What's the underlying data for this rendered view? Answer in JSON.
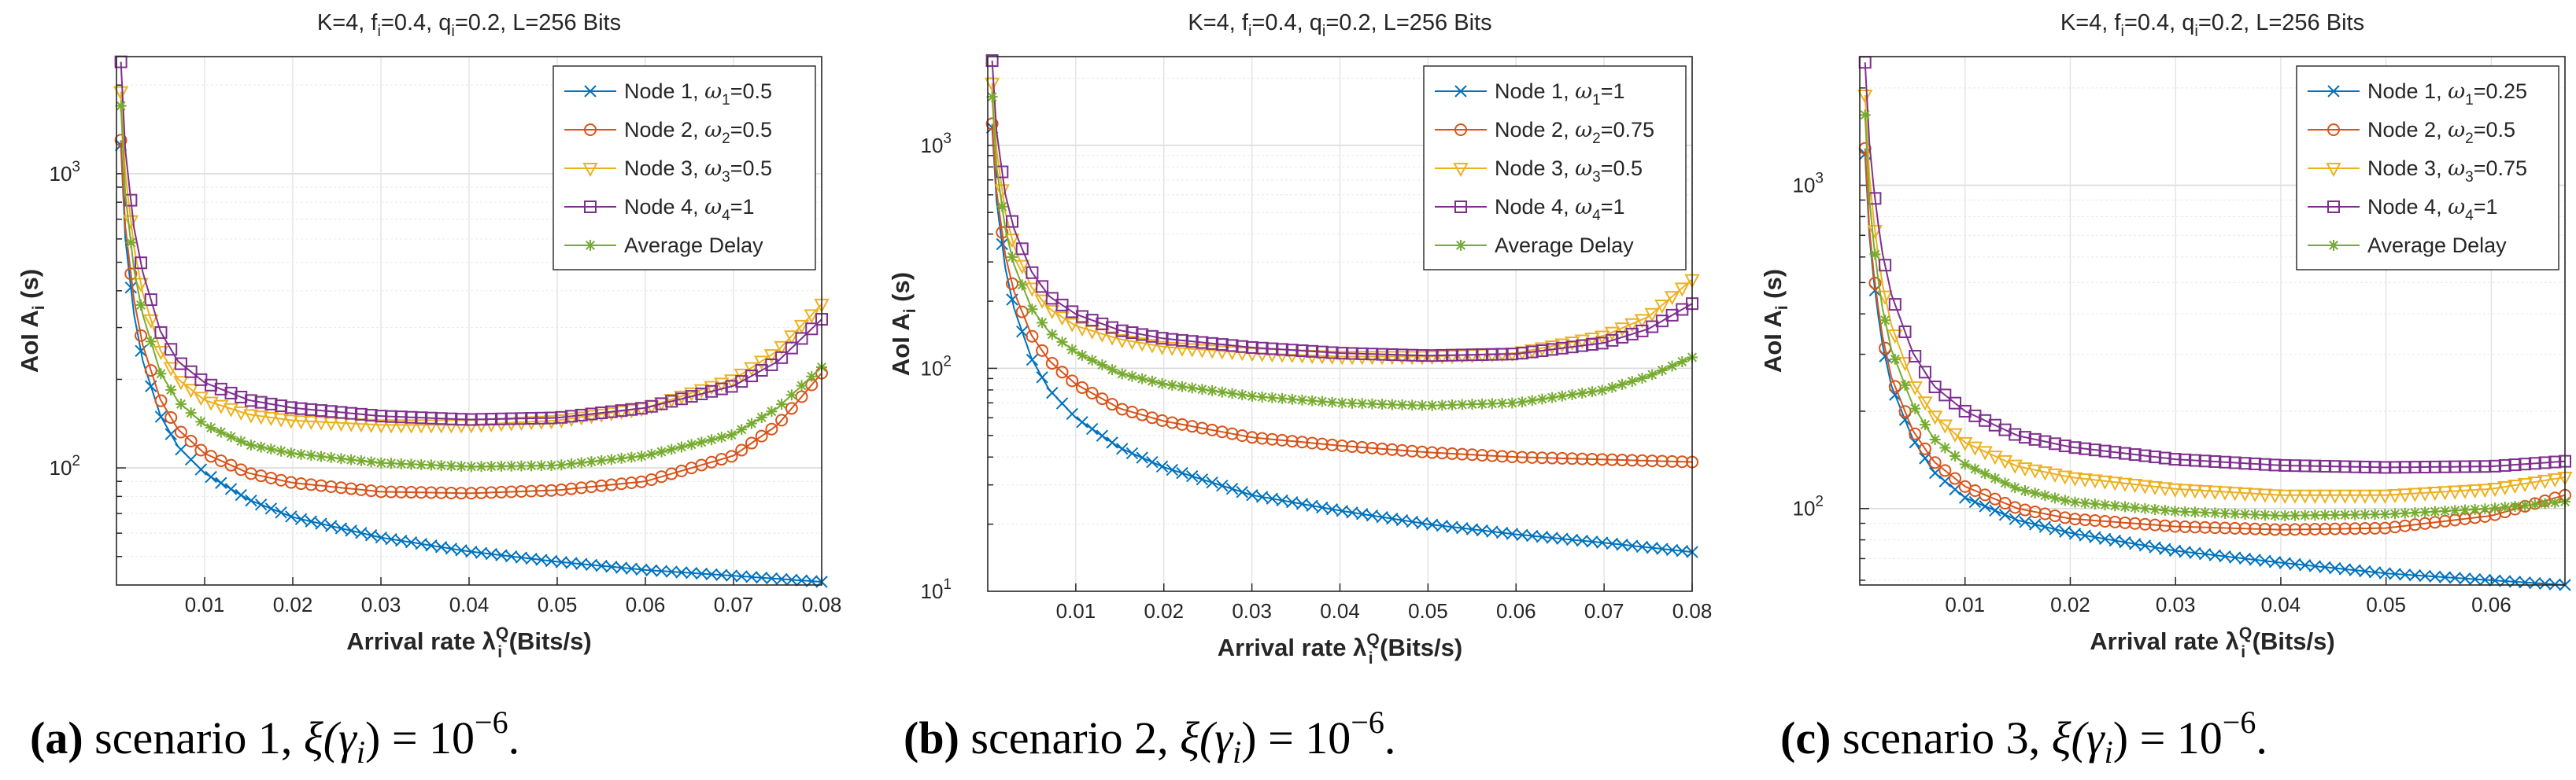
{
  "chart_data": [
    {
      "type": "line",
      "panel": "a",
      "title": "K=4, f_i=0.4, q_i=0.2, L=256 Bits",
      "title_parts": {
        "pre": "K=4, f",
        "sub1": "i",
        "mid": "=0.4, q",
        "sub2": "i",
        "post": "=0.2, L=256 Bits"
      },
      "xlabel": "Arrival rate λ_i^Q (Bits/s)",
      "xlabel_parts": {
        "pre": "Arrival rate λ",
        "sup": "Q",
        "sub": "i",
        "post": " (Bits/s)"
      },
      "ylabel": "AoI A_i (s)",
      "ylabel_parts": {
        "pre": "AoI A",
        "sub": "i",
        "post": " (s)"
      },
      "yscale": "log",
      "xlim": [
        0,
        0.08
      ],
      "ylim": [
        40,
        2500
      ],
      "xticks": [
        0.01,
        0.02,
        0.03,
        0.04,
        0.05,
        0.06,
        0.07,
        0.08
      ],
      "xtick_labels": [
        "0.01",
        "0.02",
        "0.03",
        "0.04",
        "0.05",
        "0.06",
        "0.07",
        "0.08"
      ],
      "yticks_major": [
        100,
        1000
      ],
      "ytick_labels": [
        {
          "base": "10",
          "exp": "2"
        },
        {
          "base": "10",
          "exp": "3"
        }
      ],
      "grid": true,
      "legend_position": "top-right",
      "series": [
        {
          "name": "Node 1, ω1=0.5",
          "legend": {
            "pre": "Node 1, ",
            "omega": "ω",
            "sub": "1",
            "post": "=0.5"
          },
          "color": "#0072BD",
          "marker": "x",
          "x": [
            0.0005,
            0.001,
            0.002,
            0.003,
            0.005,
            0.007,
            0.01,
            0.015,
            0.02,
            0.03,
            0.04,
            0.05,
            0.06,
            0.07,
            0.08
          ],
          "y": [
            1250,
            600,
            330,
            230,
            150,
            118,
            96,
            78,
            68,
            58,
            52,
            48,
            45,
            43,
            41
          ]
        },
        {
          "name": "Node 2, ω2=0.5",
          "legend": {
            "pre": "Node 2, ",
            "omega": "ω",
            "sub": "2",
            "post": "=0.5"
          },
          "color": "#D95319",
          "marker": "o",
          "x": [
            0.0005,
            0.001,
            0.002,
            0.003,
            0.005,
            0.007,
            0.01,
            0.015,
            0.02,
            0.03,
            0.04,
            0.05,
            0.06,
            0.07,
            0.075,
            0.08
          ],
          "y": [
            1300,
            660,
            370,
            260,
            170,
            135,
            112,
            96,
            89,
            83,
            82,
            84,
            90,
            110,
            140,
            210
          ]
        },
        {
          "name": "Node 3, ω3=0.5",
          "legend": {
            "pre": "Node 3, ",
            "omega": "ω",
            "sub": "3",
            "post": "=0.5"
          },
          "color": "#EDB120",
          "marker": "v",
          "x": [
            0.0005,
            0.001,
            0.002,
            0.003,
            0.005,
            0.007,
            0.01,
            0.015,
            0.02,
            0.03,
            0.04,
            0.05,
            0.06,
            0.07,
            0.075,
            0.08
          ],
          "y": [
            1900,
            1000,
            560,
            390,
            250,
            200,
            170,
            152,
            145,
            140,
            140,
            145,
            160,
            200,
            250,
            360
          ]
        },
        {
          "name": "Node 4, ω4=1",
          "legend": {
            "pre": "Node 4, ",
            "omega": "ω",
            "sub": "4",
            "post": "=1"
          },
          "color": "#7E2F8E",
          "marker": "s",
          "x": [
            0.0005,
            0.001,
            0.002,
            0.003,
            0.005,
            0.007,
            0.01,
            0.015,
            0.02,
            0.03,
            0.04,
            0.05,
            0.06,
            0.07,
            0.075,
            0.08
          ],
          "y": [
            2400,
            1200,
            650,
            460,
            290,
            230,
            195,
            170,
            160,
            150,
            146,
            148,
            160,
            190,
            230,
            320
          ]
        },
        {
          "name": "Average Delay",
          "legend": {
            "pre": "Average Delay",
            "omega": "",
            "sub": "",
            "post": ""
          },
          "color": "#77AC30",
          "marker": "*",
          "x": [
            0.0005,
            0.001,
            0.002,
            0.003,
            0.005,
            0.007,
            0.01,
            0.015,
            0.02,
            0.03,
            0.04,
            0.05,
            0.06,
            0.07,
            0.075,
            0.08
          ],
          "y": [
            1700,
            850,
            470,
            330,
            210,
            168,
            140,
            120,
            112,
            104,
            101,
            102,
            110,
            130,
            160,
            220
          ]
        }
      ]
    },
    {
      "type": "line",
      "panel": "b",
      "title": "K=4, f_i=0.4, q_i=0.2, L=256 Bits",
      "title_parts": {
        "pre": "K=4, f",
        "sub1": "i",
        "mid": "=0.4, q",
        "sub2": "i",
        "post": "=0.2, L=256 Bits"
      },
      "xlabel": "Arrival rate λ_i^Q (Bits/s)",
      "xlabel_parts": {
        "pre": "Arrival rate λ",
        "sup": "Q",
        "sub": "i",
        "post": " (Bits/s)"
      },
      "ylabel": "AoI A_i (s)",
      "ylabel_parts": {
        "pre": "AoI A",
        "sub": "i",
        "post": " (s)"
      },
      "yscale": "log",
      "xlim": [
        0,
        0.08
      ],
      "ylim": [
        10,
        2500
      ],
      "xticks": [
        0.01,
        0.02,
        0.03,
        0.04,
        0.05,
        0.06,
        0.07,
        0.08
      ],
      "xtick_labels": [
        "0.01",
        "0.02",
        "0.03",
        "0.04",
        "0.05",
        "0.06",
        "0.07",
        "0.08"
      ],
      "yticks_major": [
        10,
        100,
        1000
      ],
      "ytick_labels": [
        {
          "base": "10",
          "exp": "1"
        },
        {
          "base": "10",
          "exp": "2"
        },
        {
          "base": "10",
          "exp": "3"
        }
      ],
      "grid": true,
      "legend_position": "top-right",
      "series": [
        {
          "name": "Node 1, ω1=1",
          "legend": {
            "pre": "Node 1, ",
            "omega": "ω",
            "sub": "1",
            "post": "=1"
          },
          "color": "#0072BD",
          "marker": "x",
          "x": [
            0.0005,
            0.001,
            0.002,
            0.003,
            0.005,
            0.007,
            0.01,
            0.015,
            0.02,
            0.03,
            0.04,
            0.05,
            0.06,
            0.07,
            0.08
          ],
          "y": [
            1200,
            560,
            280,
            185,
            110,
            80,
            60,
            44,
            36,
            27,
            23,
            20,
            18,
            16.5,
            15
          ]
        },
        {
          "name": "Node 2, ω2=0.75",
          "legend": {
            "pre": "Node 2, ",
            "omega": "ω",
            "sub": "2",
            "post": "=0.75"
          },
          "color": "#D95319",
          "marker": "o",
          "x": [
            0.0005,
            0.001,
            0.002,
            0.003,
            0.005,
            0.007,
            0.01,
            0.015,
            0.02,
            0.03,
            0.04,
            0.05,
            0.06,
            0.07,
            0.08
          ],
          "y": [
            1250,
            620,
            320,
            220,
            140,
            108,
            85,
            66,
            58,
            49,
            45,
            42,
            40,
            39,
            38
          ]
        },
        {
          "name": "Node 3, ω3=0.5",
          "legend": {
            "pre": "Node 3, ",
            "omega": "ω",
            "sub": "3",
            "post": "=0.5"
          },
          "color": "#EDB120",
          "marker": "v",
          "x": [
            0.0005,
            0.001,
            0.002,
            0.003,
            0.005,
            0.007,
            0.01,
            0.015,
            0.02,
            0.03,
            0.04,
            0.05,
            0.06,
            0.07,
            0.075,
            0.08
          ],
          "y": [
            1900,
            950,
            500,
            350,
            230,
            185,
            155,
            135,
            125,
            117,
            113,
            113,
            117,
            140,
            170,
            250
          ]
        },
        {
          "name": "Node 4, ω4=1",
          "legend": {
            "pre": "Node 4, ",
            "omega": "ω",
            "sub": "4",
            "post": "=1"
          },
          "color": "#7E2F8E",
          "marker": "s",
          "x": [
            0.0005,
            0.001,
            0.002,
            0.003,
            0.005,
            0.007,
            0.01,
            0.015,
            0.02,
            0.03,
            0.04,
            0.05,
            0.06,
            0.07,
            0.075,
            0.08
          ],
          "y": [
            2400,
            1150,
            600,
            420,
            270,
            210,
            175,
            148,
            136,
            124,
            117,
            114,
            116,
            130,
            150,
            195
          ]
        },
        {
          "name": "Average Delay",
          "legend": {
            "pre": "Average Delay",
            "omega": "",
            "sub": "",
            "post": ""
          },
          "color": "#77AC30",
          "marker": "*",
          "x": [
            0.0005,
            0.001,
            0.002,
            0.003,
            0.005,
            0.007,
            0.01,
            0.015,
            0.02,
            0.03,
            0.04,
            0.05,
            0.06,
            0.07,
            0.075,
            0.08
          ],
          "y": [
            1650,
            800,
            420,
            290,
            185,
            145,
            118,
            95,
            85,
            75,
            70,
            68,
            70,
            80,
            92,
            112
          ]
        }
      ]
    },
    {
      "type": "line",
      "panel": "c",
      "title": "K=4, f_i=0.4, q_i=0.2, L=256 Bits",
      "title_parts": {
        "pre": "K=4, f",
        "sub1": "i",
        "mid": "=0.4, q",
        "sub2": "i",
        "post": "=0.2, L=256 Bits"
      },
      "xlabel": "Arrival rate λ_i^Q (Bits/s)",
      "xlabel_parts": {
        "pre": "Arrival rate λ",
        "sup": "Q",
        "sub": "i",
        "post": " (Bits/s)"
      },
      "ylabel": "AoI A_i (s)",
      "ylabel_parts": {
        "pre": "AoI A",
        "sub": "i",
        "post": " (s)"
      },
      "yscale": "log",
      "xlim": [
        0,
        0.067
      ],
      "ylim": [
        58,
        2500
      ],
      "xticks": [
        0.01,
        0.02,
        0.03,
        0.04,
        0.05,
        0.06
      ],
      "xtick_labels": [
        "0.01",
        "0.02",
        "0.03",
        "0.04",
        "0.05",
        "0.06"
      ],
      "yticks_major": [
        100,
        1000
      ],
      "ytick_labels": [
        {
          "base": "10",
          "exp": "2"
        },
        {
          "base": "10",
          "exp": "3"
        }
      ],
      "grid": true,
      "legend_position": "top-right",
      "series": [
        {
          "name": "Node 1, ω1=0.25",
          "legend": {
            "pre": "Node 1, ",
            "omega": "ω",
            "sub": "1",
            "post": "=0.25"
          },
          "color": "#0072BD",
          "marker": "x",
          "x": [
            0.0005,
            0.001,
            0.002,
            0.003,
            0.005,
            0.007,
            0.01,
            0.015,
            0.02,
            0.03,
            0.04,
            0.05,
            0.06,
            0.067
          ],
          "y": [
            1250,
            620,
            340,
            240,
            165,
            130,
            108,
            92,
            84,
            74,
            68,
            63,
            60,
            58
          ]
        },
        {
          "name": "Node 2, ω2=0.5",
          "legend": {
            "pre": "Node 2, ",
            "omega": "ω",
            "sub": "2",
            "post": "=0.5"
          },
          "color": "#D95319",
          "marker": "o",
          "x": [
            0.0005,
            0.001,
            0.002,
            0.003,
            0.005,
            0.007,
            0.01,
            0.015,
            0.02,
            0.03,
            0.04,
            0.05,
            0.06,
            0.067
          ],
          "y": [
            1300,
            650,
            360,
            255,
            175,
            140,
            117,
            100,
            93,
            88,
            86,
            87,
            95,
            110
          ]
        },
        {
          "name": "Node 3, ω3=0.75",
          "legend": {
            "pre": "Node 3, ",
            "omega": "ω",
            "sub": "3",
            "post": "=0.75"
          },
          "color": "#EDB120",
          "marker": "v",
          "x": [
            0.0005,
            0.001,
            0.002,
            0.003,
            0.005,
            0.007,
            0.01,
            0.015,
            0.02,
            0.03,
            0.04,
            0.05,
            0.06,
            0.067
          ],
          "y": [
            1900,
            950,
            520,
            370,
            245,
            195,
            160,
            135,
            125,
            115,
            110,
            110,
            115,
            125
          ]
        },
        {
          "name": "Node 4, ω4=1",
          "legend": {
            "pre": "Node 4, ",
            "omega": "ω",
            "sub": "4",
            "post": "=1"
          },
          "color": "#7E2F8E",
          "marker": "s",
          "x": [
            0.0005,
            0.001,
            0.002,
            0.003,
            0.005,
            0.007,
            0.01,
            0.015,
            0.02,
            0.03,
            0.04,
            0.05,
            0.06,
            0.067
          ],
          "y": [
            2400,
            1200,
            650,
            460,
            305,
            240,
            200,
            168,
            155,
            142,
            136,
            134,
            135,
            140
          ]
        },
        {
          "name": "Average Delay",
          "legend": {
            "pre": "Average Delay",
            "omega": "",
            "sub": "",
            "post": ""
          },
          "color": "#77AC30",
          "marker": "*",
          "x": [
            0.0005,
            0.001,
            0.002,
            0.003,
            0.005,
            0.007,
            0.01,
            0.015,
            0.02,
            0.03,
            0.04,
            0.05,
            0.06,
            0.067
          ],
          "y": [
            1650,
            800,
            440,
            310,
            210,
            165,
            137,
            115,
            105,
            98,
            95,
            96,
            100,
            105
          ]
        }
      ]
    }
  ],
  "captions": [
    {
      "letter": "(a)",
      "text": " scenario 1, ",
      "xi": "ξ(",
      "gamma": "γ",
      "gsub": "i",
      "eq": ") = 10",
      "exp": "−6",
      "end": "."
    },
    {
      "letter": "(b)",
      "text": " scenario 2, ",
      "xi": "ξ(",
      "gamma": "γ",
      "gsub": "i",
      "eq": ") = 10",
      "exp": "−6",
      "end": "."
    },
    {
      "letter": "(c)",
      "text": " scenario 3, ",
      "xi": "ξ(",
      "gamma": "γ",
      "gsub": "i",
      "eq": ") = 10",
      "exp": "−6",
      "end": "."
    }
  ]
}
